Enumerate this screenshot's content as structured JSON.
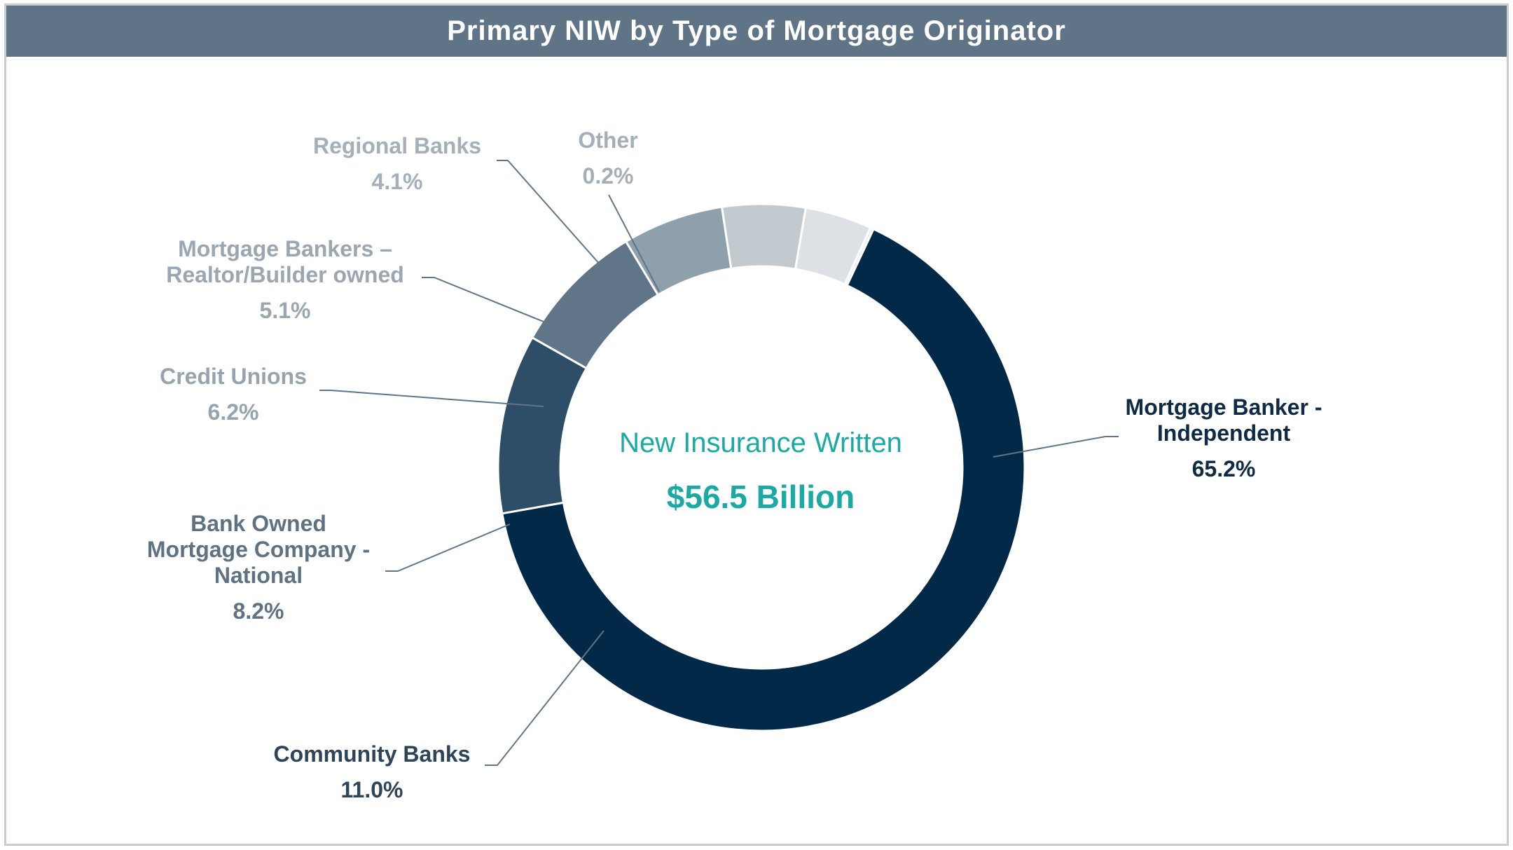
{
  "title": "Primary NIW by Type of Mortgage Originator",
  "chart_data": {
    "type": "pie",
    "title": "Primary NIW by Type of Mortgage Originator",
    "center_label": "New Insurance Written",
    "center_value": "$56.5 Billion",
    "start_slice": "Mortgage Banker - Independent",
    "slices": [
      {
        "label_lines": [
          "Mortgage Banker -",
          "Independent"
        ],
        "value": 65.2,
        "pct_text": "65.2%",
        "color": "#022a48",
        "label_color": "#0e2a44"
      },
      {
        "label_lines": [
          "Community Banks"
        ],
        "value": 11.0,
        "pct_text": "11.0%",
        "color": "#2e4d66",
        "label_color": "#2e4559"
      },
      {
        "label_lines": [
          "Bank Owned",
          "Mortgage Company -",
          "National"
        ],
        "value": 8.2,
        "pct_text": "8.2%",
        "color": "#607587",
        "label_color": "#5f7282"
      },
      {
        "label_lines": [
          "Credit Unions"
        ],
        "value": 6.2,
        "pct_text": "6.2%",
        "color": "#8fa0ad",
        "label_color": "#96a4ae"
      },
      {
        "label_lines": [
          "Mortgage Bankers –",
          "Realtor/Builder owned"
        ],
        "value": 5.1,
        "pct_text": "5.1%",
        "color": "#c2c9cf",
        "label_color": "#9aa6b0"
      },
      {
        "label_lines": [
          "Regional Banks"
        ],
        "value": 4.1,
        "pct_text": "4.1%",
        "color": "#dde1e5",
        "label_color": "#a4afb8"
      },
      {
        "label_lines": [
          "Other"
        ],
        "value": 0.2,
        "pct_text": "0.2%",
        "color": "#e9ebee",
        "label_color": "#a4afb8"
      }
    ]
  }
}
